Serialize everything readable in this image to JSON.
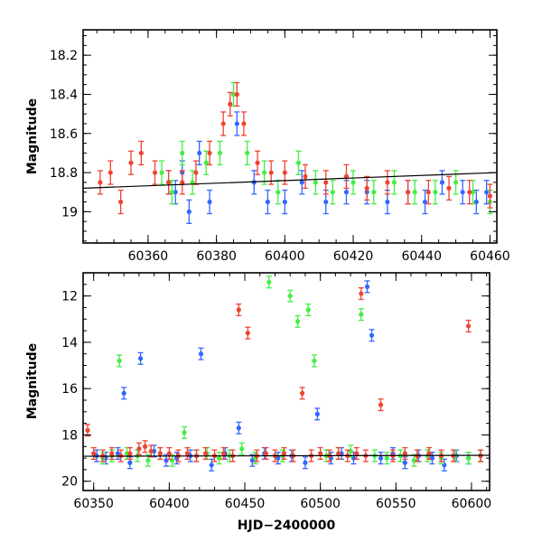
{
  "chart_data": [
    {
      "type": "scatter",
      "title": "",
      "xlabel": "",
      "ylabel": "Magnitude",
      "xlim": [
        60341,
        60462
      ],
      "ylim": [
        18.07,
        19.16
      ],
      "y_inverted": true,
      "xticks": [
        "60360",
        "60380",
        "60400",
        "60420",
        "60440",
        "60460"
      ],
      "yticks": [
        "18.2",
        "18.4",
        "18.6",
        "18.8",
        "19"
      ],
      "series": [
        {
          "color": "#3366ff",
          "x": [
            60366,
            60368,
            60370,
            60372,
            60375,
            60378,
            60386,
            60391,
            60395,
            60400,
            60405,
            60412,
            60418,
            60424,
            60430,
            60436,
            60441,
            60446,
            60452,
            60456,
            60459
          ],
          "y": [
            18.85,
            18.9,
            18.8,
            19.0,
            18.7,
            18.95,
            18.55,
            18.85,
            18.95,
            18.95,
            18.85,
            18.95,
            18.9,
            18.9,
            18.95,
            18.9,
            18.95,
            18.85,
            18.9,
            18.95,
            18.9
          ]
        },
        {
          "color": "#44ee44",
          "x": [
            60364,
            60367,
            60370,
            60373,
            60377,
            60381,
            60385,
            60389,
            60394,
            60398,
            60404,
            60409,
            60414,
            60420,
            60426,
            60432,
            60438,
            60444,
            60450,
            60455,
            60460
          ],
          "y": [
            18.8,
            18.9,
            18.7,
            18.85,
            18.75,
            18.7,
            18.4,
            18.7,
            18.8,
            18.9,
            18.75,
            18.85,
            18.9,
            18.85,
            18.9,
            18.85,
            18.9,
            18.9,
            18.85,
            18.9,
            18.95
          ]
        },
        {
          "color": "#ee4433",
          "x": [
            60346,
            60349,
            60352,
            60355,
            60358,
            60362,
            60366,
            60370,
            60374,
            60378,
            60382,
            60384,
            60386,
            60388,
            60392,
            60396,
            60400,
            60406,
            60412,
            60418,
            60424,
            60430,
            60436,
            60442,
            60448,
            60454,
            60460
          ],
          "y": [
            18.85,
            18.8,
            18.95,
            18.75,
            18.7,
            18.8,
            18.85,
            18.85,
            18.8,
            18.7,
            18.55,
            18.45,
            18.4,
            18.55,
            18.75,
            18.8,
            18.8,
            18.82,
            18.85,
            18.82,
            18.88,
            18.85,
            18.9,
            18.9,
            18.88,
            18.9,
            18.92
          ]
        }
      ],
      "trend_line": {
        "x": [
          60341,
          60462
        ],
        "y": [
          18.88,
          18.8
        ]
      }
    },
    {
      "type": "scatter",
      "title": "",
      "xlabel": "HJD−2400000",
      "ylabel": "Magnitude",
      "xlim": [
        60343,
        60612
      ],
      "ylim": [
        11.0,
        20.4
      ],
      "y_inverted": true,
      "xticks": [
        "60350",
        "60400",
        "60450",
        "60500",
        "60550",
        "60600"
      ],
      "yticks": [
        "12",
        "14",
        "16",
        "18",
        "20"
      ],
      "series": [
        {
          "color": "#3366ff",
          "x": [
            60352,
            60358,
            60366,
            60370,
            60374,
            60381,
            60390,
            60398,
            60405,
            60414,
            60421,
            60428,
            60437,
            60446,
            60455,
            60463,
            60472,
            60481,
            60490,
            60498,
            60507,
            60514,
            60522,
            60531,
            60534,
            60540,
            60548,
            60556,
            60565,
            60574,
            60582,
            60590,
            60598,
            60606
          ],
          "y": [
            18.9,
            19.0,
            18.8,
            16.2,
            19.2,
            14.7,
            18.7,
            19.1,
            19.0,
            18.9,
            14.5,
            19.3,
            18.8,
            17.7,
            19.1,
            18.8,
            19.0,
            18.9,
            19.2,
            17.1,
            19.0,
            18.8,
            19.0,
            11.6,
            13.7,
            19.0,
            18.8,
            19.2,
            18.9,
            19.0,
            19.3,
            18.9,
            19.0,
            18.9
          ]
        },
        {
          "color": "#44ee44",
          "x": [
            60356,
            60362,
            60367,
            60372,
            60379,
            60386,
            60394,
            60402,
            60410,
            60418,
            60425,
            60433,
            60440,
            60448,
            60457,
            60466,
            60475,
            60480,
            60485,
            60492,
            60496,
            60504,
            60512,
            60520,
            60527,
            60536,
            60544,
            60553,
            60562,
            60571,
            60580,
            60589,
            60598,
            60606
          ],
          "y": [
            19.0,
            18.9,
            14.8,
            18.8,
            18.9,
            19.1,
            18.8,
            19.1,
            17.9,
            18.9,
            18.8,
            19.0,
            18.9,
            18.6,
            19.0,
            11.4,
            18.9,
            12.0,
            13.1,
            12.6,
            14.8,
            18.9,
            18.8,
            18.7,
            12.8,
            18.9,
            19.0,
            18.9,
            19.1,
            18.9,
            19.0,
            18.9,
            19.0,
            18.9
          ]
        },
        {
          "color": "#ee4433",
          "x": [
            60346,
            60350,
            60356,
            60362,
            60368,
            60374,
            60380,
            60384,
            60388,
            60394,
            60400,
            60406,
            60412,
            60418,
            60424,
            60430,
            60436,
            60442,
            60446,
            60452,
            60458,
            60464,
            60470,
            60476,
            60482,
            60488,
            60494,
            60500,
            60506,
            60512,
            60518,
            60524,
            60527,
            60530,
            60540,
            60548,
            60556,
            60564,
            60572,
            60580,
            60588,
            60598,
            60606
          ],
          "y": [
            17.8,
            18.8,
            18.9,
            18.8,
            18.9,
            18.8,
            18.6,
            18.5,
            18.7,
            18.8,
            18.8,
            18.9,
            18.8,
            18.9,
            18.8,
            18.9,
            18.8,
            18.9,
            12.6,
            13.6,
            18.9,
            18.8,
            18.9,
            18.8,
            18.9,
            16.2,
            18.9,
            18.8,
            18.9,
            18.8,
            18.9,
            18.8,
            11.9,
            18.9,
            16.7,
            18.9,
            18.8,
            18.9,
            18.8,
            18.9,
            18.9,
            13.3,
            18.9
          ]
        }
      ],
      "trend_line": {
        "x": [
          60343,
          60612
        ],
        "y": [
          18.92,
          18.88
        ]
      }
    }
  ]
}
